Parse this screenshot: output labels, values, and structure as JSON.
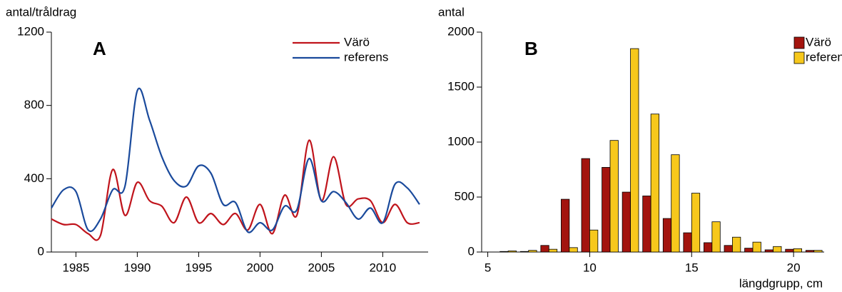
{
  "chart_data": [
    {
      "type": "line",
      "y_label": "antal/tråldrag",
      "label": "A",
      "x": [
        1983,
        1984,
        1985,
        1986,
        1987,
        1988,
        1989,
        1990,
        1991,
        1992,
        1993,
        1994,
        1995,
        1996,
        1997,
        1998,
        1999,
        2000,
        2001,
        2002,
        2003,
        2004,
        2005,
        2006,
        2007,
        2008,
        2009,
        2010,
        2011,
        2012,
        2013
      ],
      "xlim": [
        1983,
        2013.7
      ],
      "xticks": [
        1985,
        1990,
        1995,
        2000,
        2005,
        2010
      ],
      "ylim": [
        0,
        1200
      ],
      "yticks": [
        0,
        400,
        800,
        1200
      ],
      "series": [
        {
          "name": "Värö",
          "color": "#c0141c",
          "values": [
            180,
            150,
            150,
            100,
            90,
            450,
            200,
            380,
            280,
            250,
            160,
            300,
            160,
            210,
            150,
            210,
            120,
            260,
            100,
            310,
            200,
            610,
            280,
            520,
            260,
            290,
            280,
            160,
            260,
            160,
            160
          ]
        },
        {
          "name": "referens",
          "color": "#1a4a9c",
          "values": [
            240,
            340,
            330,
            120,
            180,
            340,
            360,
            880,
            720,
            520,
            390,
            360,
            470,
            430,
            260,
            270,
            110,
            160,
            120,
            250,
            230,
            510,
            280,
            330,
            270,
            180,
            240,
            160,
            370,
            350,
            260
          ]
        }
      ]
    },
    {
      "type": "bar",
      "y_label": "antal",
      "label": "B",
      "x_label": "längdgrupp, cm",
      "x": [
        6,
        7,
        8,
        9,
        10,
        11,
        12,
        13,
        14,
        15,
        16,
        17,
        18,
        19,
        20,
        21
      ],
      "xlim": [
        4.7,
        21.5
      ],
      "xticks": [
        5,
        10,
        15,
        20
      ],
      "ylim": [
        0,
        2000
      ],
      "yticks": [
        0,
        500,
        1000,
        1500,
        2000
      ],
      "series": [
        {
          "name": "Värö",
          "color": "#a3140e",
          "values": [
            5,
            5,
            60,
            480,
            850,
            770,
            545,
            510,
            305,
            175,
            85,
            60,
            35,
            20,
            25,
            15
          ]
        },
        {
          "name": "referens",
          "color": "#f7c81c",
          "values": [
            10,
            15,
            25,
            40,
            200,
            1015,
            1850,
            1255,
            885,
            535,
            275,
            135,
            90,
            50,
            30,
            15
          ]
        }
      ]
    }
  ]
}
